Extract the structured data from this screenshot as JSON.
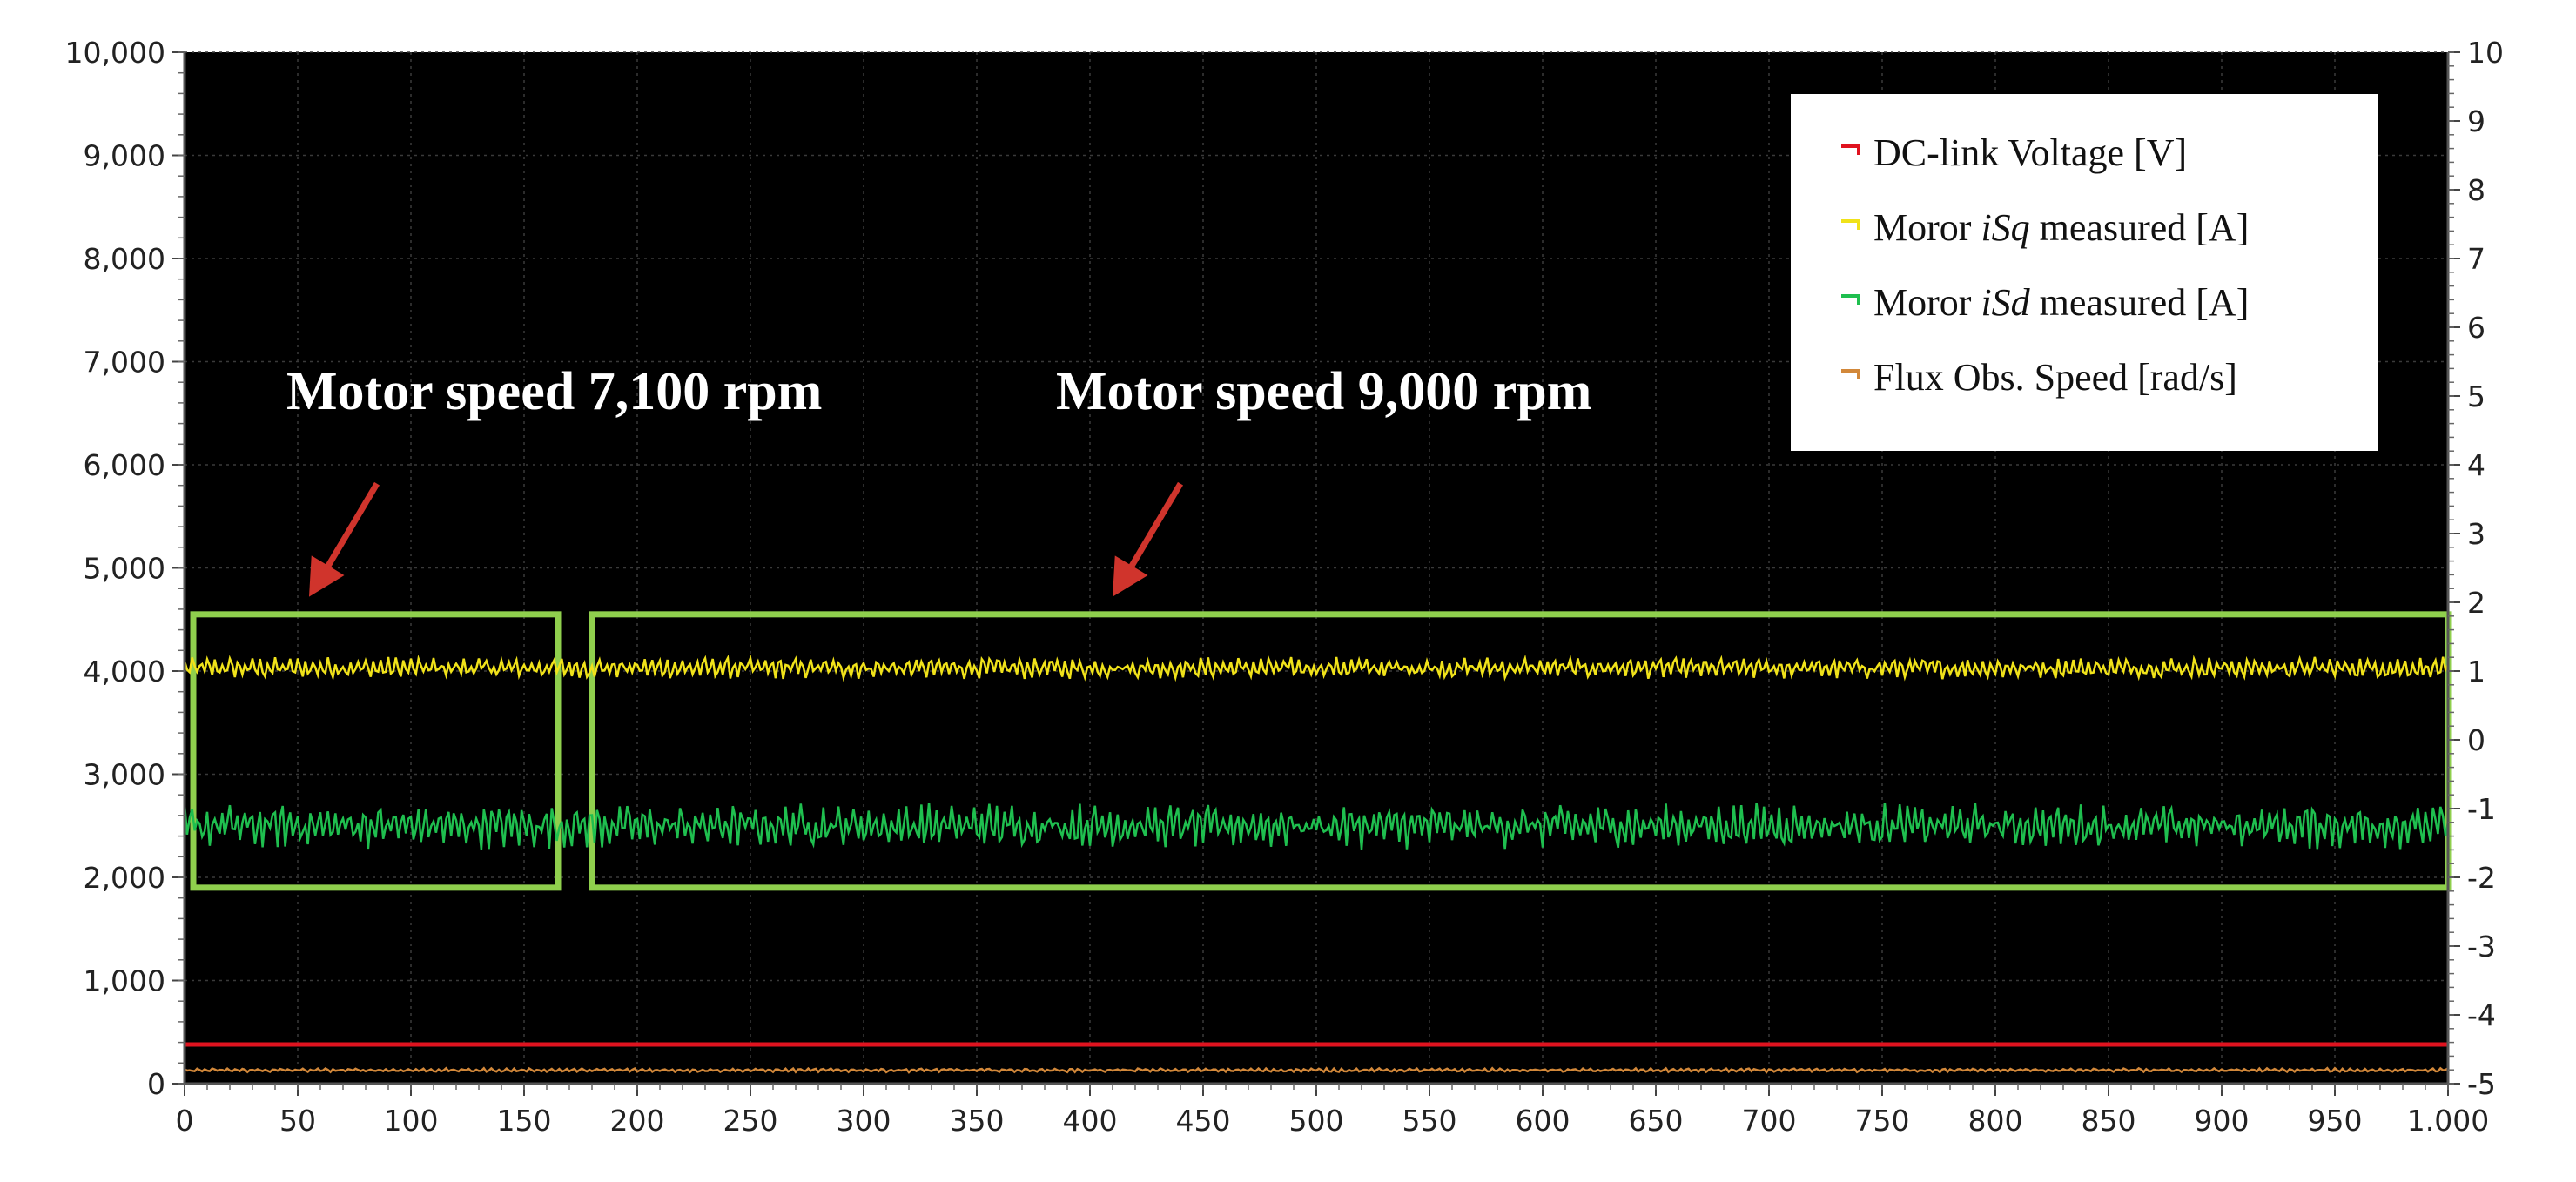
{
  "chart_data": {
    "type": "line",
    "title": "",
    "xlabel": "",
    "ylabel": "",
    "xlim": [
      0,
      1000
    ],
    "ylim": [
      0,
      10000
    ],
    "y2lim": [
      -5,
      10
    ],
    "x_ticks": [
      "0",
      "50",
      "100",
      "150",
      "200",
      "250",
      "300",
      "350",
      "400",
      "450",
      "500",
      "550",
      "600",
      "650",
      "700",
      "750",
      "800",
      "850",
      "900",
      "950",
      "1.000"
    ],
    "y_ticks": [
      "0",
      "1,000",
      "2,000",
      "3,000",
      "4,000",
      "5,000",
      "6,000",
      "7,000",
      "8,000",
      "9,000",
      "10,000"
    ],
    "y2_ticks": [
      "-5",
      "-4",
      "-3",
      "-2",
      "-1",
      "0",
      "1",
      "2",
      "3",
      "4",
      "5",
      "6",
      "7",
      "8",
      "9",
      "10"
    ],
    "background": "#000000",
    "grid": true,
    "legend_position": "top-right",
    "series": [
      {
        "name": "DC-link Voltage [V]",
        "color": "#e0131f",
        "x": [
          0,
          1000
        ],
        "values": [
          380,
          380
        ],
        "note_style": "flat"
      },
      {
        "name": "Moror iSq measured [A]",
        "name_parts": [
          "Moror ",
          "iSq",
          " measured [A]"
        ],
        "color": "#f0e21a",
        "x": [
          0,
          1000
        ],
        "values": [
          4030,
          4030
        ],
        "noise_amplitude": 110
      },
      {
        "name": "Moror iSd measured [A]",
        "name_parts": [
          "Moror ",
          "iSd",
          " measured [A]"
        ],
        "color": "#1fbf4f",
        "x": [
          0,
          1000
        ],
        "values": [
          2500,
          2500
        ],
        "noise_amplitude": 230
      },
      {
        "name": "Flux Obs. Speed [rad/s]",
        "color": "#d2883a",
        "x": [
          0,
          1000
        ],
        "values": [
          130,
          130
        ],
        "noise_amplitude": 20
      }
    ],
    "annotations": [
      {
        "text": "Motor speed 7,100 rpm",
        "x_range": [
          0,
          165
        ],
        "y_range": [
          1900,
          4550
        ],
        "arrow_to": [
          55,
          4720
        ],
        "anchor_x": 45
      },
      {
        "text": "Motor speed 9,000 rpm",
        "x_range": [
          180,
          1000
        ],
        "y_range": [
          1900,
          4550
        ],
        "arrow_to": [
          410,
          4720
        ],
        "anchor_x": 385
      }
    ],
    "highlight_color": "#8fcf4d",
    "arrow_color": "#d0342c"
  }
}
